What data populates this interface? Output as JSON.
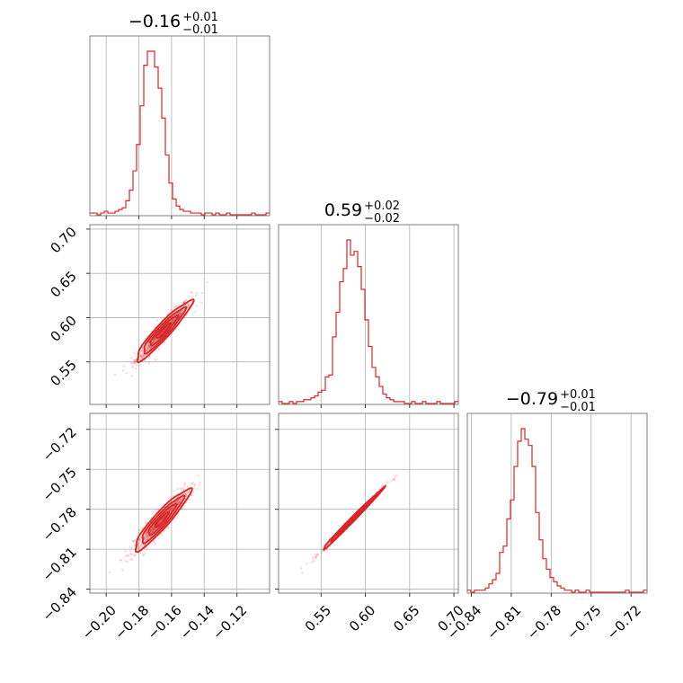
{
  "chart_data": {
    "type": "corner",
    "color": "#d62728",
    "parameters": [
      {
        "range": [
          -0.21,
          -0.1
        ],
        "ticks": [
          -0.2,
          -0.18,
          -0.16,
          -0.14,
          -0.12
        ],
        "tick_labels": [
          "−0.20",
          "−0.18",
          "−0.16",
          "−0.14",
          "−0.12"
        ]
      },
      {
        "range": [
          0.502,
          0.705
        ],
        "ticks": [
          0.55,
          0.6,
          0.65,
          0.7
        ],
        "tick_labels": [
          "0.55",
          "0.60",
          "0.65",
          "0.70"
        ]
      },
      {
        "range": [
          -0.843,
          -0.708
        ],
        "ticks": [
          -0.84,
          -0.81,
          -0.78,
          -0.75,
          -0.72
        ],
        "tick_labels": [
          "−0.84",
          "−0.81",
          "−0.78",
          "−0.75",
          "−0.72"
        ]
      }
    ],
    "titles": [
      {
        "median": "−0.16",
        "plus": "+0.01",
        "minus": "−0.01"
      },
      {
        "median": "0.59",
        "plus": "+0.02",
        "minus": "−0.02"
      },
      {
        "median": "−0.79",
        "plus": "+0.01",
        "minus": "−0.01"
      }
    ],
    "histograms": [
      {
        "edges": [
          -0.21,
          -0.1
        ],
        "counts": [
          1,
          1,
          0,
          1,
          2,
          1,
          1,
          2,
          3,
          4,
          8,
          14,
          25,
          40,
          62,
          85,
          93,
          93,
          84,
          72,
          55,
          34,
          18,
          9,
          5,
          3,
          2,
          2,
          1,
          1,
          1,
          0,
          1,
          1,
          0,
          1,
          0,
          0,
          1,
          0,
          0,
          0,
          0,
          0,
          0,
          1,
          0,
          0,
          0,
          1
        ]
      },
      {
        "edges": [
          0.502,
          0.705
        ],
        "counts": [
          1,
          0,
          0,
          1,
          0,
          1,
          1,
          2,
          2,
          3,
          4,
          6,
          7,
          14,
          15,
          35,
          48,
          64,
          71,
          86,
          78,
          80,
          72,
          60,
          44,
          30,
          19,
          14,
          9,
          5,
          3,
          2,
          1,
          1,
          1,
          0,
          0,
          1,
          0,
          0,
          1,
          0,
          0,
          0,
          1,
          0,
          0,
          0,
          0,
          1
        ]
      },
      {
        "edges": [
          -0.843,
          -0.708
        ],
        "counts": [
          1,
          0,
          1,
          1,
          1,
          2,
          4,
          6,
          9,
          19,
          22,
          35,
          44,
          60,
          72,
          78,
          73,
          70,
          60,
          38,
          25,
          16,
          11,
          7,
          5,
          3,
          2,
          1,
          1,
          0,
          1,
          0,
          0,
          1,
          0,
          0,
          0,
          0,
          0,
          0,
          0,
          0,
          0,
          0,
          1,
          0,
          0,
          0,
          0,
          1
        ]
      }
    ],
    "pairs": [
      {
        "x": 0,
        "y": 1,
        "mean": [
          -0.165,
          0.585
        ],
        "std": [
          0.0085,
          0.017
        ],
        "corr": 0.94
      },
      {
        "x": 0,
        "y": 2,
        "mean": [
          -0.166,
          -0.788
        ],
        "std": [
          0.0085,
          0.0115
        ],
        "corr": 0.93
      },
      {
        "x": 1,
        "y": 2,
        "mean": [
          0.585,
          -0.788
        ],
        "std": [
          0.017,
          0.0115
        ],
        "corr": 0.995
      }
    ]
  }
}
